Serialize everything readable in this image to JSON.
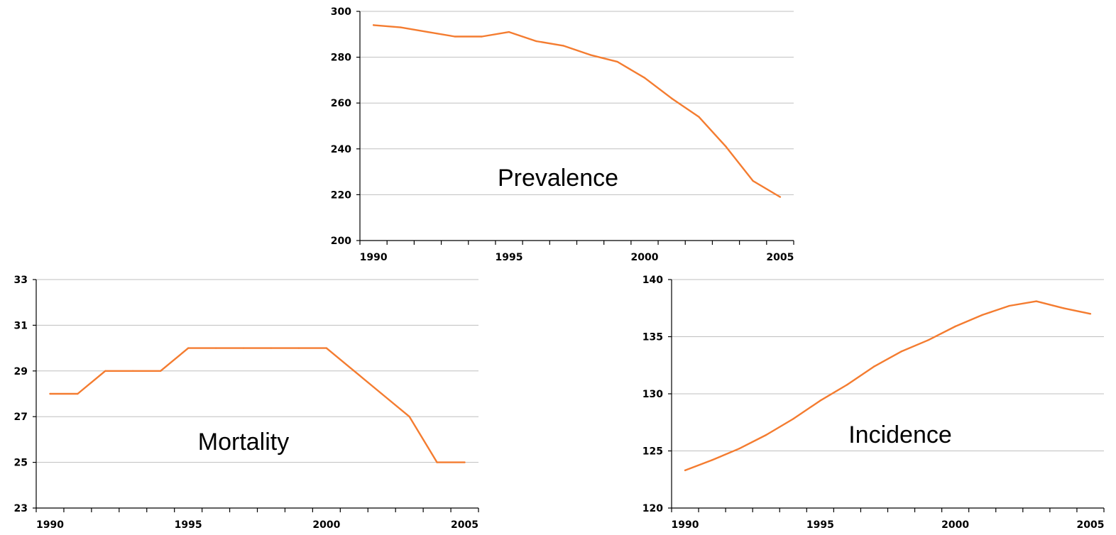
{
  "chart_data": [
    {
      "type": "line",
      "title": "Prevalence",
      "x": [
        1990,
        1991,
        1992,
        1993,
        1994,
        1995,
        1996,
        1997,
        1998,
        1999,
        2000,
        2001,
        2002,
        2003,
        2004,
        2005
      ],
      "series": [
        {
          "values": [
            294,
            293,
            291,
            289,
            289,
            291,
            287,
            285,
            281,
            278,
            271,
            262,
            254,
            241,
            226,
            219
          ],
          "color": "#f47c30"
        }
      ],
      "xlim": [
        1989.5,
        2005.5
      ],
      "ylim": [
        200,
        300
      ],
      "yticks": [
        "200",
        "220",
        "240",
        "260",
        "280",
        "300"
      ],
      "xticks": [
        "1990",
        "1995",
        "2000",
        "2005"
      ],
      "grid": true,
      "xlabel": "",
      "ylabel": ""
    },
    {
      "type": "line",
      "title": "Mortality",
      "x": [
        1990,
        1991,
        1992,
        1993,
        1994,
        1995,
        1996,
        1997,
        1998,
        1999,
        2000,
        2001,
        2002,
        2003,
        2004,
        2005
      ],
      "series": [
        {
          "values": [
            28,
            28,
            29,
            29,
            29,
            30,
            30,
            30,
            30,
            30,
            30,
            29,
            28,
            27,
            25,
            25
          ],
          "color": "#f47c30"
        }
      ],
      "xlim": [
        1989.5,
        2005.5
      ],
      "ylim": [
        23,
        33
      ],
      "yticks": [
        "23",
        "25",
        "27",
        "29",
        "31",
        "33"
      ],
      "xticks": [
        "1990",
        "1995",
        "2000",
        "2005"
      ],
      "grid": true,
      "xlabel": "",
      "ylabel": ""
    },
    {
      "type": "line",
      "title": "Incidence",
      "x": [
        1990,
        1991,
        1992,
        1993,
        1994,
        1995,
        1996,
        1997,
        1998,
        1999,
        2000,
        2001,
        2002,
        2003,
        2004,
        2005
      ],
      "series": [
        {
          "values": [
            123.3,
            124.2,
            125.2,
            126.4,
            127.8,
            129.4,
            130.8,
            132.4,
            133.7,
            134.7,
            135.9,
            136.9,
            137.7,
            138.1,
            137.5,
            137.0
          ],
          "color": "#f47c30"
        }
      ],
      "xlim": [
        1989.5,
        2005.5
      ],
      "ylim": [
        120,
        140
      ],
      "yticks": [
        "120",
        "125",
        "130",
        "135",
        "140"
      ],
      "xticks": [
        "1990",
        "1995",
        "2000",
        "2005"
      ],
      "grid": true,
      "xlabel": "",
      "ylabel": ""
    }
  ]
}
